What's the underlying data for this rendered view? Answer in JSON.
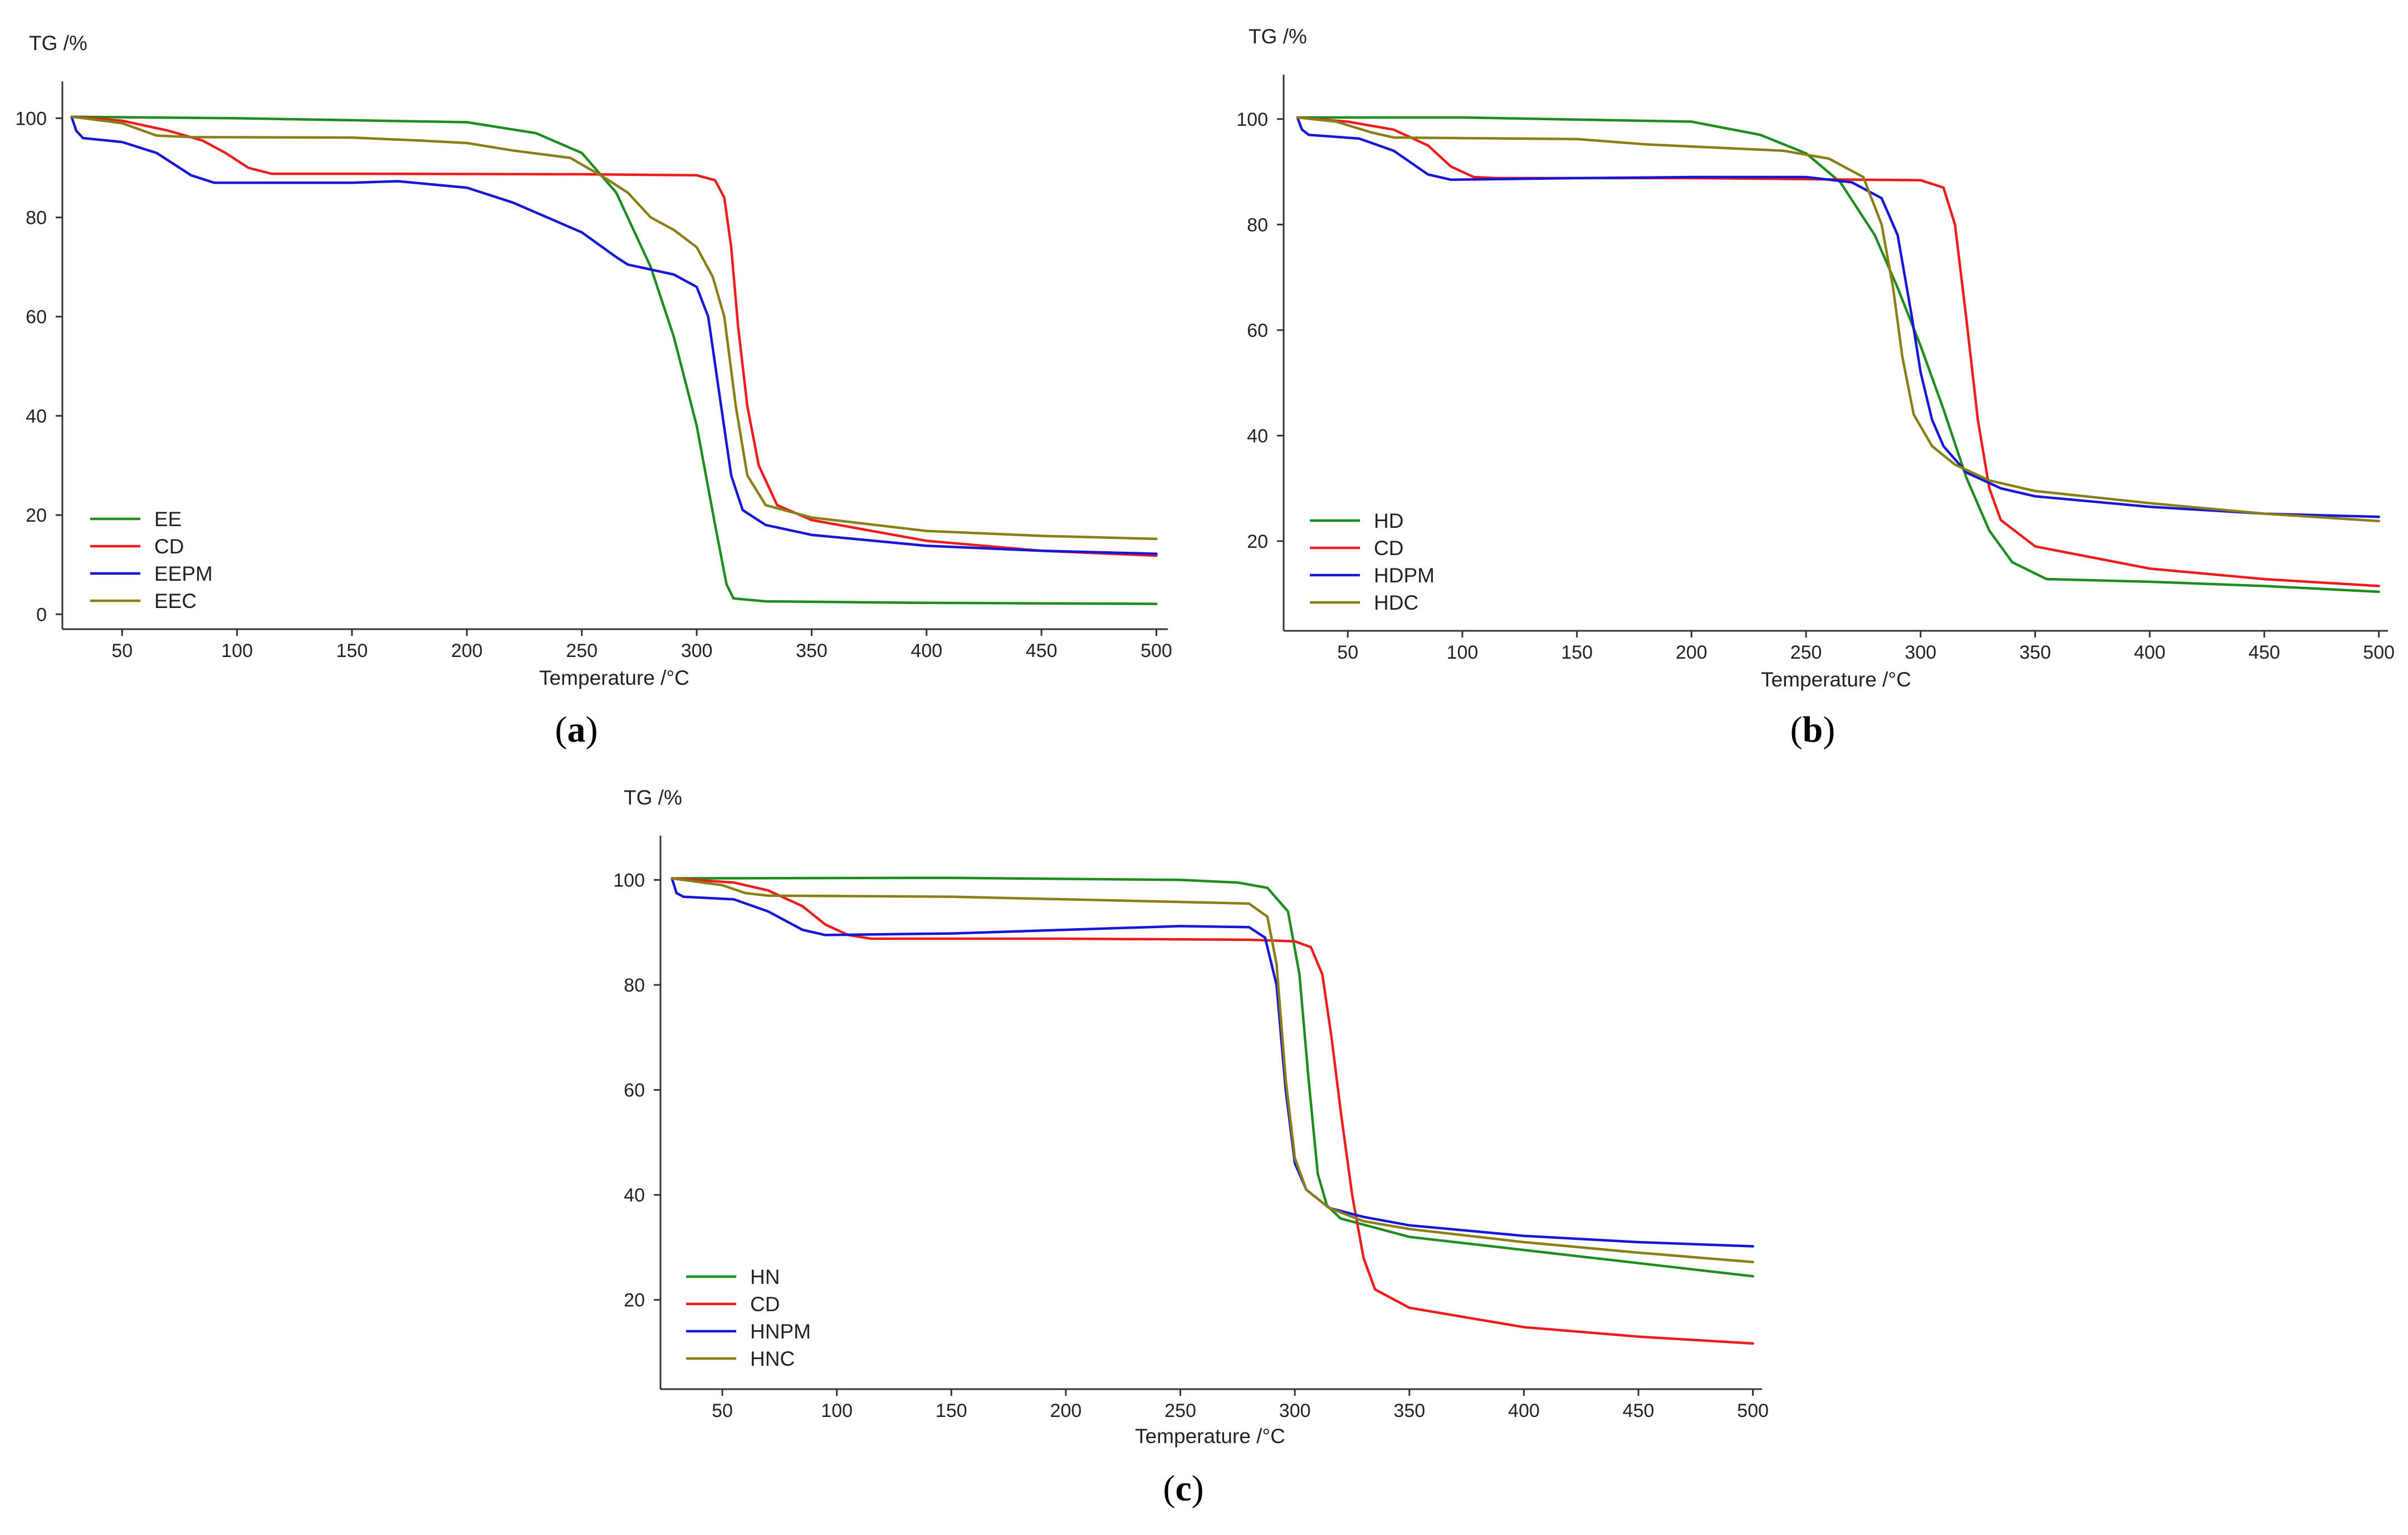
{
  "figure": {
    "captions": [
      "(a)",
      "(b)",
      "(c)"
    ]
  },
  "colors": {
    "green": "#1e8c1e",
    "red": "#ee1c1c",
    "blue": "#1616d8",
    "olive": "#8a7f16",
    "axis": "#333333"
  },
  "chart_data": [
    {
      "id": "a",
      "type": "line",
      "caption_letter": "a",
      "xlabel": "Temperature /°C",
      "ylabel": "TG /%",
      "xlim": [
        24,
        504
      ],
      "ylim": [
        -3,
        107
      ],
      "xticks": [
        50,
        100,
        150,
        200,
        250,
        300,
        350,
        400,
        450,
        500
      ],
      "yticks": [
        0,
        20,
        40,
        60,
        80,
        100
      ],
      "legend_position": "bottom-left",
      "series": [
        {
          "name": "EE",
          "color": "#1e8c1e",
          "points": [
            [
              28,
              100.3
            ],
            [
              100,
              100
            ],
            [
              200,
              99.2
            ],
            [
              230,
              97
            ],
            [
              250,
              93
            ],
            [
              265,
              85
            ],
            [
              280,
              70
            ],
            [
              290,
              56
            ],
            [
              300,
              38
            ],
            [
              308,
              18
            ],
            [
              313,
              6
            ],
            [
              316,
              3.2
            ],
            [
              330,
              2.6
            ],
            [
              400,
              2.3
            ],
            [
              500,
              2.1
            ]
          ]
        },
        {
          "name": "CD",
          "color": "#ee1c1c",
          "points": [
            [
              28,
              100.3
            ],
            [
              50,
              99.5
            ],
            [
              70,
              97.5
            ],
            [
              85,
              95.5
            ],
            [
              95,
              93
            ],
            [
              105,
              90
            ],
            [
              115,
              88.8
            ],
            [
              150,
              88.8
            ],
            [
              250,
              88.7
            ],
            [
              300,
              88.5
            ],
            [
              308,
              87.5
            ],
            [
              312,
              84
            ],
            [
              315,
              74
            ],
            [
              318,
              58
            ],
            [
              322,
              42
            ],
            [
              327,
              30
            ],
            [
              335,
              22
            ],
            [
              350,
              19
            ],
            [
              400,
              14.8
            ],
            [
              450,
              12.8
            ],
            [
              500,
              11.8
            ]
          ]
        },
        {
          "name": "EEPM",
          "color": "#1616d8",
          "points": [
            [
              28,
              100.3
            ],
            [
              30,
              97.5
            ],
            [
              33,
              96
            ],
            [
              50,
              95.2
            ],
            [
              65,
              93
            ],
            [
              80,
              88.5
            ],
            [
              90,
              87
            ],
            [
              150,
              87
            ],
            [
              170,
              87.3
            ],
            [
              200,
              86
            ],
            [
              220,
              83
            ],
            [
              250,
              77
            ],
            [
              265,
              72
            ],
            [
              270,
              70.5
            ],
            [
              290,
              68.5
            ],
            [
              300,
              66
            ],
            [
              305,
              60
            ],
            [
              310,
              44
            ],
            [
              315,
              28
            ],
            [
              320,
              21
            ],
            [
              330,
              18
            ],
            [
              350,
              16
            ],
            [
              400,
              13.8
            ],
            [
              450,
              12.8
            ],
            [
              500,
              12.2
            ]
          ]
        },
        {
          "name": "EEC",
          "color": "#8a7f16",
          "points": [
            [
              28,
              100.3
            ],
            [
              50,
              99
            ],
            [
              65,
              96.5
            ],
            [
              80,
              96.2
            ],
            [
              150,
              96.1
            ],
            [
              180,
              95.5
            ],
            [
              200,
              95
            ],
            [
              220,
              93.5
            ],
            [
              245,
              92
            ],
            [
              260,
              88
            ],
            [
              270,
              85
            ],
            [
              280,
              80
            ],
            [
              290,
              77.5
            ],
            [
              300,
              74
            ],
            [
              307,
              68
            ],
            [
              312,
              60
            ],
            [
              317,
              42
            ],
            [
              322,
              28
            ],
            [
              330,
              22
            ],
            [
              350,
              19.5
            ],
            [
              400,
              16.8
            ],
            [
              450,
              15.8
            ],
            [
              500,
              15.2
            ]
          ]
        }
      ]
    },
    {
      "id": "b",
      "type": "line",
      "caption_letter": "b",
      "xlabel": "Temperature /°C",
      "ylabel": "TG /%",
      "xlim": [
        22,
        503
      ],
      "ylim": [
        3,
        108
      ],
      "xticks": [
        50,
        100,
        150,
        200,
        250,
        300,
        350,
        400,
        450,
        500
      ],
      "yticks": [
        20,
        40,
        60,
        80,
        100
      ],
      "legend_position": "bottom-left",
      "series": [
        {
          "name": "HD",
          "color": "#1e8c1e",
          "points": [
            [
              28,
              100.3
            ],
            [
              100,
              100.3
            ],
            [
              200,
              99.5
            ],
            [
              230,
              97
            ],
            [
              250,
              93.5
            ],
            [
              265,
              88
            ],
            [
              280,
              78
            ],
            [
              290,
              68
            ],
            [
              300,
              57
            ],
            [
              310,
              45
            ],
            [
              320,
              32
            ],
            [
              330,
              22
            ],
            [
              340,
              16
            ],
            [
              355,
              12.8
            ],
            [
              400,
              12.3
            ],
            [
              450,
              11.5
            ],
            [
              500,
              10.4
            ]
          ]
        },
        {
          "name": "CD",
          "color": "#ee1c1c",
          "points": [
            [
              28,
              100.3
            ],
            [
              50,
              99.5
            ],
            [
              70,
              98
            ],
            [
              85,
              95
            ],
            [
              95,
              91
            ],
            [
              105,
              89
            ],
            [
              115,
              88.8
            ],
            [
              200,
              88.8
            ],
            [
              300,
              88.4
            ],
            [
              310,
              87
            ],
            [
              315,
              80
            ],
            [
              320,
              62
            ],
            [
              325,
              43
            ],
            [
              330,
              30
            ],
            [
              335,
              24
            ],
            [
              350,
              19
            ],
            [
              400,
              14.8
            ],
            [
              450,
              12.8
            ],
            [
              500,
              11.5
            ]
          ]
        },
        {
          "name": "HDPM",
          "color": "#1616d8",
          "points": [
            [
              28,
              100.3
            ],
            [
              30,
              98
            ],
            [
              33,
              97
            ],
            [
              55,
              96.3
            ],
            [
              70,
              94
            ],
            [
              85,
              89.5
            ],
            [
              95,
              88.5
            ],
            [
              150,
              88.8
            ],
            [
              200,
              89
            ],
            [
              250,
              89
            ],
            [
              270,
              88
            ],
            [
              283,
              85
            ],
            [
              290,
              78
            ],
            [
              296,
              63
            ],
            [
              300,
              52
            ],
            [
              305,
              43
            ],
            [
              310,
              38
            ],
            [
              320,
              33
            ],
            [
              335,
              30
            ],
            [
              350,
              28.5
            ],
            [
              400,
              26.5
            ],
            [
              450,
              25.2
            ],
            [
              500,
              24.6
            ]
          ]
        },
        {
          "name": "HDC",
          "color": "#8a7f16",
          "points": [
            [
              28,
              100.3
            ],
            [
              45,
              99.5
            ],
            [
              60,
              97.5
            ],
            [
              70,
              96.5
            ],
            [
              150,
              96.2
            ],
            [
              180,
              95.2
            ],
            [
              200,
              94.8
            ],
            [
              240,
              94
            ],
            [
              260,
              92.5
            ],
            [
              275,
              89
            ],
            [
              283,
              80
            ],
            [
              288,
              68
            ],
            [
              292,
              55
            ],
            [
              297,
              44
            ],
            [
              305,
              38
            ],
            [
              315,
              34.5
            ],
            [
              330,
              31.5
            ],
            [
              350,
              29.5
            ],
            [
              400,
              27.2
            ],
            [
              450,
              25.2
            ],
            [
              500,
              23.8
            ]
          ]
        }
      ]
    },
    {
      "id": "c",
      "type": "line",
      "caption_letter": "c",
      "xlabel": "Temperature /°C",
      "ylabel": "TG /%",
      "xlim": [
        23,
        503
      ],
      "ylim": [
        3,
        108
      ],
      "xticks": [
        50,
        100,
        150,
        200,
        250,
        300,
        350,
        400,
        450,
        500
      ],
      "yticks": [
        20,
        40,
        60,
        80,
        100
      ],
      "legend_position": "bottom-left",
      "series": [
        {
          "name": "HN",
          "color": "#1e8c1e",
          "points": [
            [
              28,
              100.3
            ],
            [
              150,
              100.4
            ],
            [
              250,
              100
            ],
            [
              275,
              99.5
            ],
            [
              288,
              98.5
            ],
            [
              297,
              94
            ],
            [
              302,
              82
            ],
            [
              306,
              62
            ],
            [
              310,
              44
            ],
            [
              314,
              38
            ],
            [
              320,
              35.5
            ],
            [
              350,
              32
            ],
            [
              400,
              29.5
            ],
            [
              450,
              27
            ],
            [
              500,
              24.5
            ]
          ]
        },
        {
          "name": "CD",
          "color": "#ee1c1c",
          "points": [
            [
              28,
              100.3
            ],
            [
              55,
              99.5
            ],
            [
              70,
              98
            ],
            [
              85,
              95
            ],
            [
              95,
              91.5
            ],
            [
              105,
              89.5
            ],
            [
              115,
              88.8
            ],
            [
              200,
              88.8
            ],
            [
              280,
              88.6
            ],
            [
              300,
              88.3
            ],
            [
              307,
              87.2
            ],
            [
              312,
              82
            ],
            [
              316,
              70
            ],
            [
              320,
              56
            ],
            [
              325,
              40
            ],
            [
              330,
              28
            ],
            [
              335,
              22
            ],
            [
              350,
              18.5
            ],
            [
              400,
              14.8
            ],
            [
              450,
              13
            ],
            [
              500,
              11.7
            ]
          ]
        },
        {
          "name": "HNPM",
          "color": "#1616d8",
          "points": [
            [
              28,
              100.3
            ],
            [
              30,
              97.5
            ],
            [
              33,
              96.8
            ],
            [
              55,
              96.3
            ],
            [
              70,
              94
            ],
            [
              85,
              90.5
            ],
            [
              95,
              89.5
            ],
            [
              150,
              89.8
            ],
            [
              200,
              90.5
            ],
            [
              250,
              91.2
            ],
            [
              280,
              91
            ],
            [
              287,
              89
            ],
            [
              292,
              80
            ],
            [
              296,
              60
            ],
            [
              300,
              46
            ],
            [
              305,
              41
            ],
            [
              315,
              37.5
            ],
            [
              330,
              35.8
            ],
            [
              350,
              34.2
            ],
            [
              400,
              32.2
            ],
            [
              450,
              31
            ],
            [
              500,
              30.2
            ]
          ]
        },
        {
          "name": "HNC",
          "color": "#8a7f16",
          "points": [
            [
              28,
              100.3
            ],
            [
              50,
              99
            ],
            [
              60,
              97.5
            ],
            [
              70,
              97
            ],
            [
              150,
              96.8
            ],
            [
              200,
              96.3
            ],
            [
              250,
              95.8
            ],
            [
              280,
              95.5
            ],
            [
              288,
              93
            ],
            [
              292,
              84
            ],
            [
              296,
              62
            ],
            [
              300,
              47
            ],
            [
              305,
              41
            ],
            [
              315,
              37.5
            ],
            [
              330,
              35
            ],
            [
              350,
              33.5
            ],
            [
              400,
              31
            ],
            [
              450,
              29
            ],
            [
              500,
              27.2
            ]
          ]
        }
      ]
    }
  ]
}
